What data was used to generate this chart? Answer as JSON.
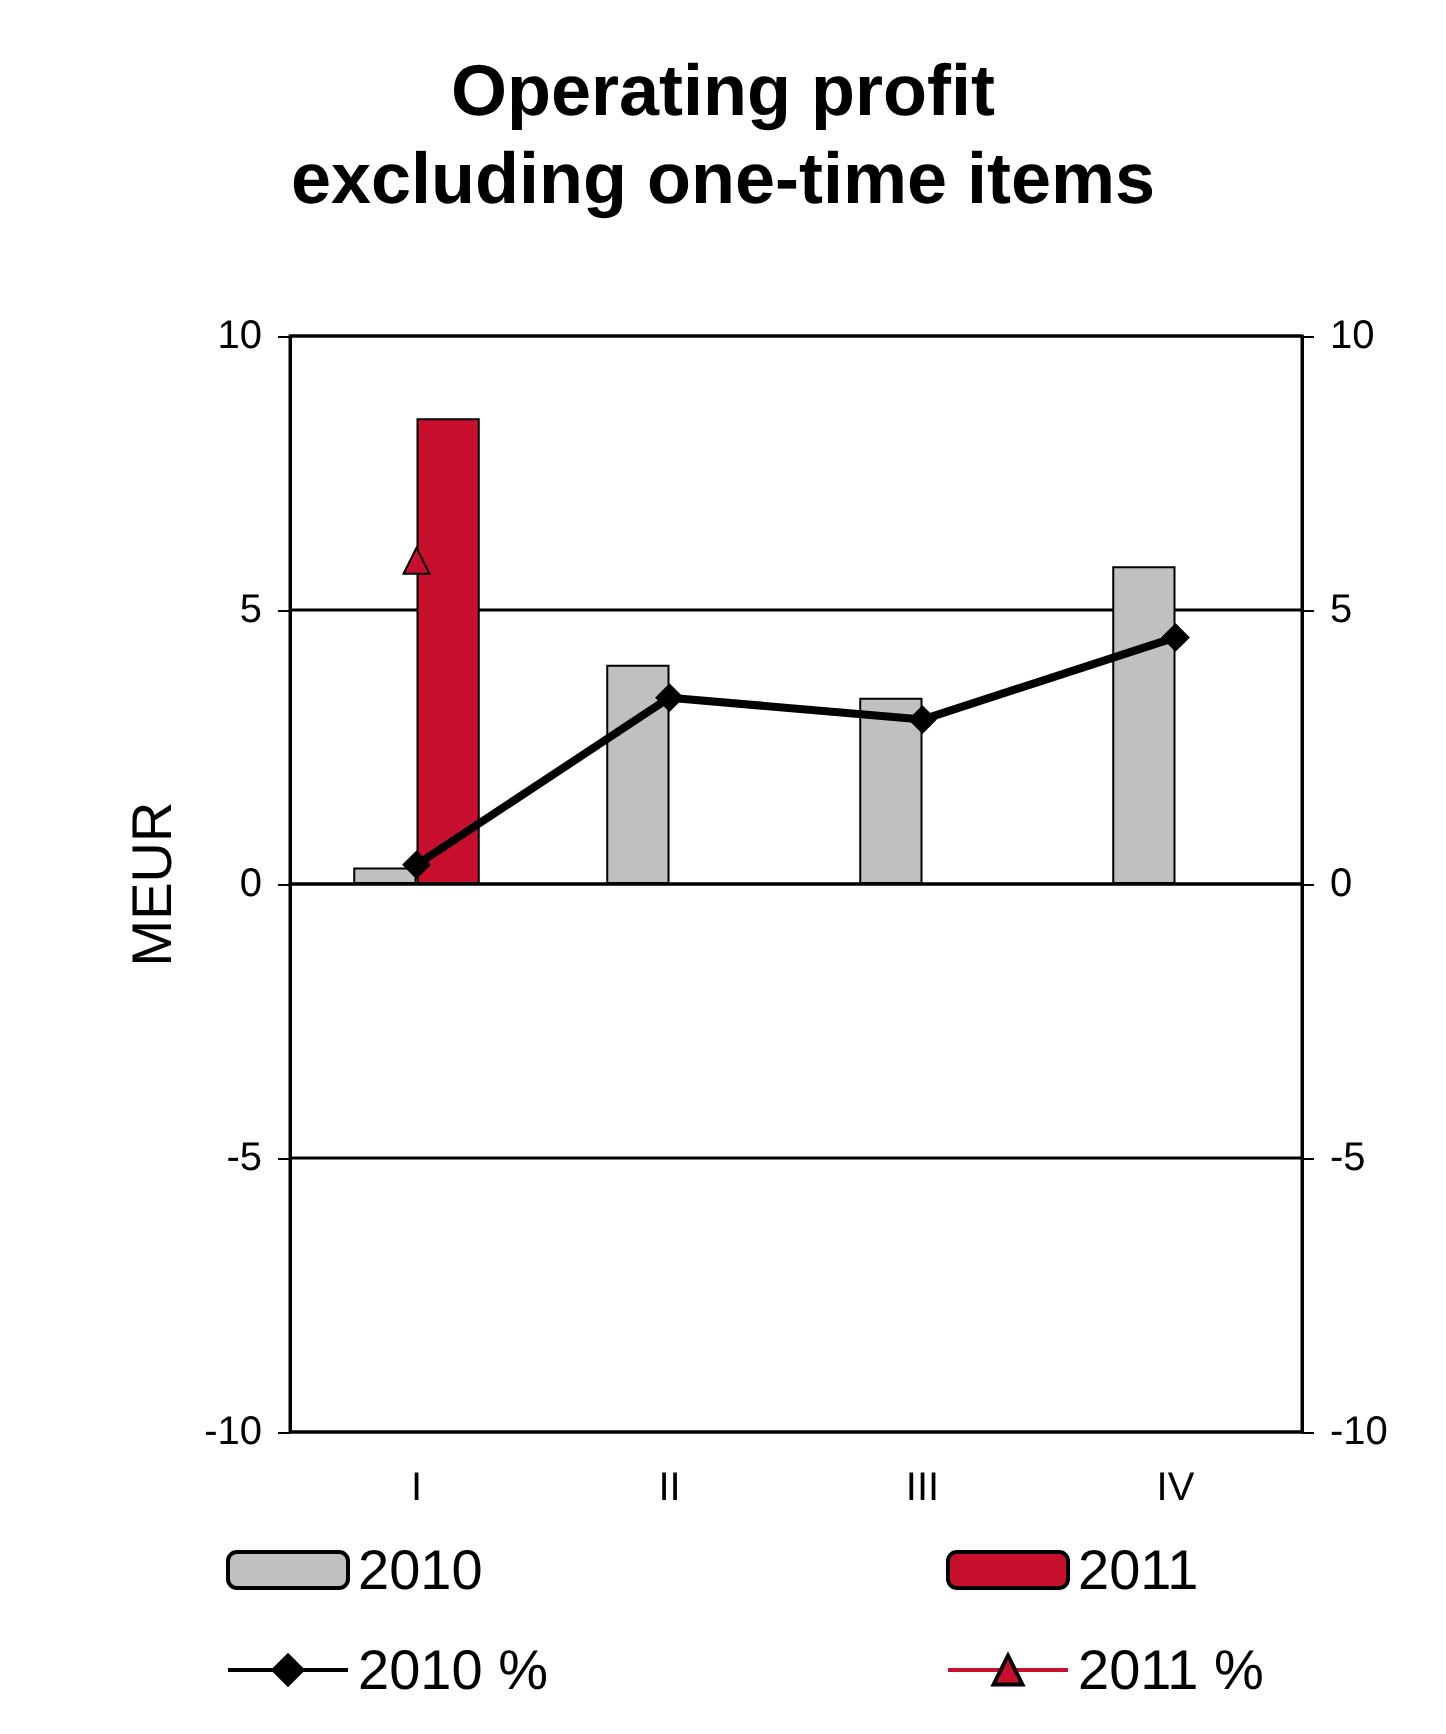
{
  "chart_data": {
    "type": "bar",
    "title": "Operating profit\nexcluding one-time items",
    "ylabel": "MEUR",
    "categories": [
      "I",
      "II",
      "III",
      "IV"
    ],
    "series": [
      {
        "name": "2010",
        "color": "#c0c0c0",
        "values": [
          0.3,
          4.0,
          3.4,
          5.8
        ]
      },
      {
        "name": "2011",
        "color": "#c8102e",
        "values": [
          8.5,
          null,
          null,
          null
        ]
      },
      {
        "name": "2010 %",
        "type": "line",
        "color": "#000000",
        "marker": "diamond",
        "values": [
          0.35,
          3.4,
          3.0,
          4.5
        ]
      },
      {
        "name": "2011 %",
        "type": "line",
        "color": "#c8102e",
        "marker": "triangle",
        "values": [
          5.9,
          null,
          null,
          null
        ]
      }
    ],
    "ylim": [
      -10,
      10
    ],
    "yticks": [
      -10,
      -5,
      0,
      5,
      10
    ],
    "y2lim": [
      -10,
      10
    ],
    "y2ticks": [
      -10,
      -5,
      0,
      5,
      10
    ],
    "grid": "y",
    "legend": "bottom"
  }
}
